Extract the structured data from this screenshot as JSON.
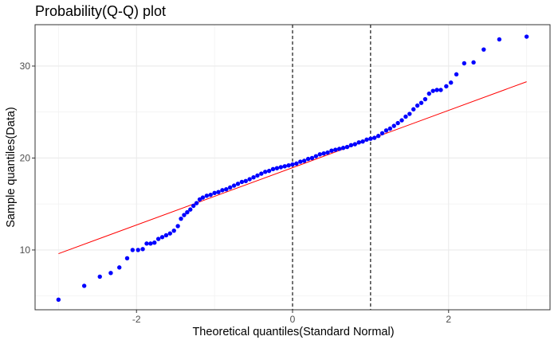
{
  "chart_data": {
    "type": "scatter",
    "title": "Probability(Q-Q) plot",
    "xlabel": "Theoretical quantiles(Standard Normal)",
    "ylabel": "Sample quantiles(Data)",
    "xlim": [
      -3.3,
      3.3
    ],
    "ylim": [
      3.5,
      34.5
    ],
    "x_ticks": [
      -2,
      0,
      2
    ],
    "y_ticks": [
      10,
      20,
      30
    ],
    "x_tick_labels": [
      "-2",
      "0",
      "2"
    ],
    "y_tick_labels": [
      "10",
      "20",
      "30"
    ],
    "grid": true,
    "point_color": "#0000ff",
    "reference_line": {
      "color": "#ff0000",
      "x": [
        -3.0,
        3.0
      ],
      "y": [
        9.6,
        28.3
      ]
    },
    "vertical_lines": [
      {
        "x": 0.0,
        "style": "dashed",
        "color": "#000000"
      },
      {
        "x": 1.0,
        "style": "dashed",
        "color": "#000000"
      }
    ],
    "points": [
      [
        -3.0,
        4.6
      ],
      [
        -2.67,
        6.1
      ],
      [
        -2.47,
        7.1
      ],
      [
        -2.33,
        7.5
      ],
      [
        -2.22,
        8.1
      ],
      [
        -2.12,
        9.1
      ],
      [
        -2.05,
        10.0
      ],
      [
        -1.98,
        10.0
      ],
      [
        -1.92,
        10.1
      ],
      [
        -1.87,
        10.7
      ],
      [
        -1.82,
        10.7
      ],
      [
        -1.77,
        10.8
      ],
      [
        -1.72,
        11.2
      ],
      [
        -1.67,
        11.4
      ],
      [
        -1.62,
        11.6
      ],
      [
        -1.57,
        11.8
      ],
      [
        -1.52,
        12.1
      ],
      [
        -1.47,
        12.6
      ],
      [
        -1.43,
        13.4
      ],
      [
        -1.39,
        13.8
      ],
      [
        -1.35,
        14.1
      ],
      [
        -1.31,
        14.4
      ],
      [
        -1.27,
        14.8
      ],
      [
        -1.23,
        15.1
      ],
      [
        -1.19,
        15.5
      ],
      [
        -1.15,
        15.7
      ],
      [
        -1.1,
        15.9
      ],
      [
        -1.05,
        16.0
      ],
      [
        -1.0,
        16.2
      ],
      [
        -0.95,
        16.3
      ],
      [
        -0.9,
        16.5
      ],
      [
        -0.85,
        16.6
      ],
      [
        -0.8,
        16.8
      ],
      [
        -0.75,
        17.0
      ],
      [
        -0.7,
        17.2
      ],
      [
        -0.65,
        17.4
      ],
      [
        -0.6,
        17.5
      ],
      [
        -0.55,
        17.7
      ],
      [
        -0.5,
        17.9
      ],
      [
        -0.45,
        18.1
      ],
      [
        -0.4,
        18.3
      ],
      [
        -0.35,
        18.5
      ],
      [
        -0.3,
        18.6
      ],
      [
        -0.25,
        18.8
      ],
      [
        -0.2,
        18.9
      ],
      [
        -0.15,
        19.0
      ],
      [
        -0.1,
        19.1
      ],
      [
        -0.05,
        19.2
      ],
      [
        0.0,
        19.3
      ],
      [
        0.05,
        19.4
      ],
      [
        0.1,
        19.6
      ],
      [
        0.15,
        19.7
      ],
      [
        0.2,
        19.9
      ],
      [
        0.25,
        20.0
      ],
      [
        0.3,
        20.2
      ],
      [
        0.35,
        20.4
      ],
      [
        0.4,
        20.5
      ],
      [
        0.45,
        20.6
      ],
      [
        0.5,
        20.8
      ],
      [
        0.55,
        20.9
      ],
      [
        0.6,
        21.0
      ],
      [
        0.65,
        21.1
      ],
      [
        0.7,
        21.2
      ],
      [
        0.75,
        21.4
      ],
      [
        0.8,
        21.5
      ],
      [
        0.85,
        21.7
      ],
      [
        0.9,
        21.8
      ],
      [
        0.95,
        22.0
      ],
      [
        1.0,
        22.1
      ],
      [
        1.05,
        22.2
      ],
      [
        1.1,
        22.4
      ],
      [
        1.15,
        22.7
      ],
      [
        1.2,
        23.0
      ],
      [
        1.25,
        23.2
      ],
      [
        1.3,
        23.5
      ],
      [
        1.35,
        23.8
      ],
      [
        1.4,
        24.1
      ],
      [
        1.45,
        24.5
      ],
      [
        1.5,
        24.8
      ],
      [
        1.55,
        25.3
      ],
      [
        1.6,
        25.7
      ],
      [
        1.65,
        26.0
      ],
      [
        1.7,
        26.4
      ],
      [
        1.75,
        27.0
      ],
      [
        1.8,
        27.3
      ],
      [
        1.85,
        27.4
      ],
      [
        1.9,
        27.4
      ],
      [
        1.97,
        27.8
      ],
      [
        2.03,
        28.2
      ],
      [
        2.1,
        29.1
      ],
      [
        2.2,
        30.3
      ],
      [
        2.32,
        30.4
      ],
      [
        2.45,
        31.8
      ],
      [
        2.65,
        32.9
      ],
      [
        3.0,
        33.2
      ]
    ]
  }
}
